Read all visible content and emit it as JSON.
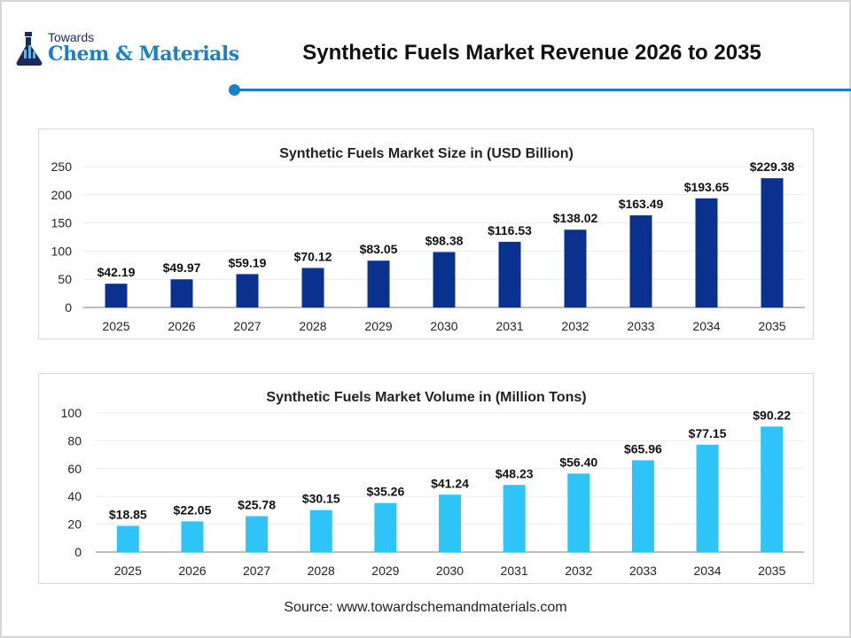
{
  "header": {
    "logo_top": "Towards",
    "logo_main": "Chem & Materials",
    "title": "Synthetic Fuels Market Revenue 2026 to 2035",
    "accent_color": "#1a7fc6"
  },
  "chart_data": [
    {
      "type": "bar",
      "title": "Synthetic Fuels Market Size in (USD Billion)",
      "categories": [
        "2025",
        "2026",
        "2027",
        "2028",
        "2029",
        "2030",
        "2031",
        "2032",
        "2033",
        "2034",
        "2035"
      ],
      "values": [
        42.19,
        49.97,
        59.19,
        70.12,
        83.05,
        98.38,
        116.53,
        138.02,
        163.49,
        193.65,
        229.38
      ],
      "data_labels": [
        "$42.19",
        "$49.97",
        "$59.19",
        "$70.12",
        "$83.05",
        "$98.38",
        "$116.53",
        "$138.02",
        "$163.49",
        "$193.65",
        "$229.38"
      ],
      "ylim": [
        0,
        250
      ],
      "yticks": [
        "0",
        "50",
        "100",
        "150",
        "200",
        "250"
      ],
      "grid": true,
      "color": "#0b318f"
    },
    {
      "type": "bar",
      "title": "Synthetic Fuels Market Volume in (Million Tons)",
      "categories": [
        "2025",
        "2026",
        "2027",
        "2028",
        "2029",
        "2030",
        "2031",
        "2032",
        "2033",
        "2034",
        "2035"
      ],
      "values": [
        18.85,
        22.05,
        25.78,
        30.15,
        35.26,
        41.24,
        48.23,
        56.4,
        65.96,
        77.15,
        90.22
      ],
      "data_labels": [
        "$18.85",
        "$22.05",
        "$25.78",
        "$30.15",
        "$35.26",
        "$41.24",
        "$48.23",
        "$56.40",
        "$65.96",
        "$77.15",
        "$90.22"
      ],
      "ylim": [
        0,
        100
      ],
      "yticks": [
        "0",
        "20",
        "40",
        "60",
        "80",
        "100"
      ],
      "grid": true,
      "color": "#2ec4f8"
    }
  ],
  "footer": {
    "source": "Source: www.towardschemandmaterials.com"
  }
}
